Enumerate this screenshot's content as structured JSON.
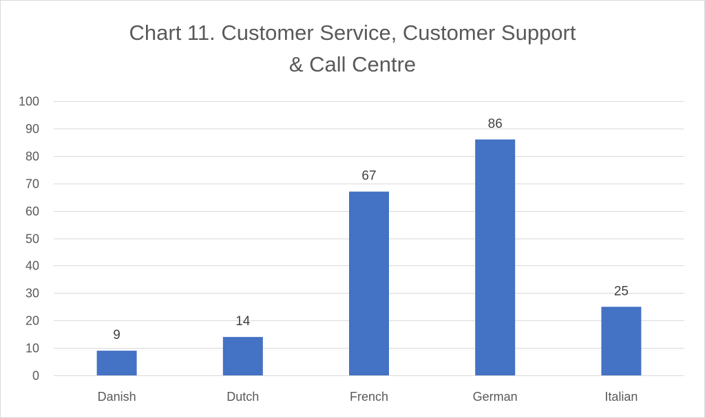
{
  "chart_data": {
    "type": "bar",
    "title": "Chart 11. Customer Service, Customer Support\n& Call Centre",
    "categories": [
      "Danish",
      "Dutch",
      "French",
      "German",
      "Italian"
    ],
    "values": [
      9,
      14,
      67,
      86,
      25
    ],
    "data_labels": [
      "9",
      "14",
      "67",
      "86",
      "25"
    ],
    "ylim": [
      0,
      100
    ],
    "yticks": [
      0,
      10,
      20,
      30,
      40,
      50,
      60,
      70,
      80,
      90,
      100
    ],
    "grid": true,
    "legend": "none",
    "bar_color": "#4472c4",
    "grid_color": "#d9d9d9"
  }
}
